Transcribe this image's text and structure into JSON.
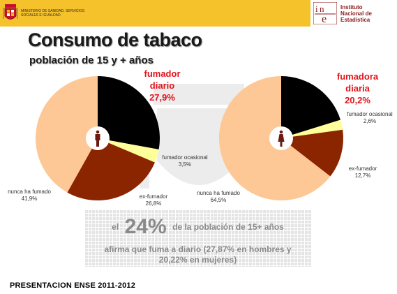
{
  "header": {
    "ministry": "MINISTERIO DE SANIDAD, SERVICIOS SOCIALES E IGUALDAD",
    "ine_line1": "Instituto",
    "ine_line2": "Nacional de",
    "ine_line3": "Estadística",
    "ine_logo": "INE",
    "colors": {
      "bar": "#f6c22b",
      "ine": "#8b1a1a"
    }
  },
  "title": "Consumo de tabaco",
  "subtitle": "población de 15 y + años",
  "chart_data": [
    {
      "type": "pie",
      "group_icon": "man-icon",
      "callout": {
        "line1": "fumador",
        "line2": "diario",
        "line3": "27,9%"
      },
      "slices": [
        {
          "label": "fumador diario",
          "value": 27.9,
          "display": "27,9%",
          "color": "#000000"
        },
        {
          "label": "fumador ocasional",
          "value": 3.5,
          "display": "3,5%",
          "color": "#ffff99"
        },
        {
          "label": "ex-fumador",
          "value": 26.8,
          "display": "26,8%",
          "color": "#8b2500"
        },
        {
          "label": "nunca ha fumado",
          "value": 41.9,
          "display": "41,9%",
          "color": "#fdc896"
        }
      ]
    },
    {
      "type": "pie",
      "group_icon": "woman-icon",
      "callout": {
        "line1": "fumadora",
        "line2": "diaria",
        "line3": "20,2%"
      },
      "slices": [
        {
          "label": "fumadora diaria",
          "value": 20.2,
          "display": "20,2%",
          "color": "#000000"
        },
        {
          "label": "fumador ocasional",
          "value": 2.6,
          "display": "2,6%",
          "color": "#ffff99"
        },
        {
          "label": "ex-fumador",
          "value": 12.7,
          "display": "12,7%",
          "color": "#8b2500"
        },
        {
          "label": "nunca ha fumado",
          "value": 64.5,
          "display": "64,5%",
          "color": "#fdc896"
        }
      ]
    }
  ],
  "banner": {
    "pre": "el",
    "big": "24%",
    "post": "de la población de 15+ años",
    "line2": "afirma que fuma a diario (27,87% en hombres y",
    "line3": "20,22% en mujeres)"
  },
  "footer": "PRESENTACION ENSE 2011-2012"
}
